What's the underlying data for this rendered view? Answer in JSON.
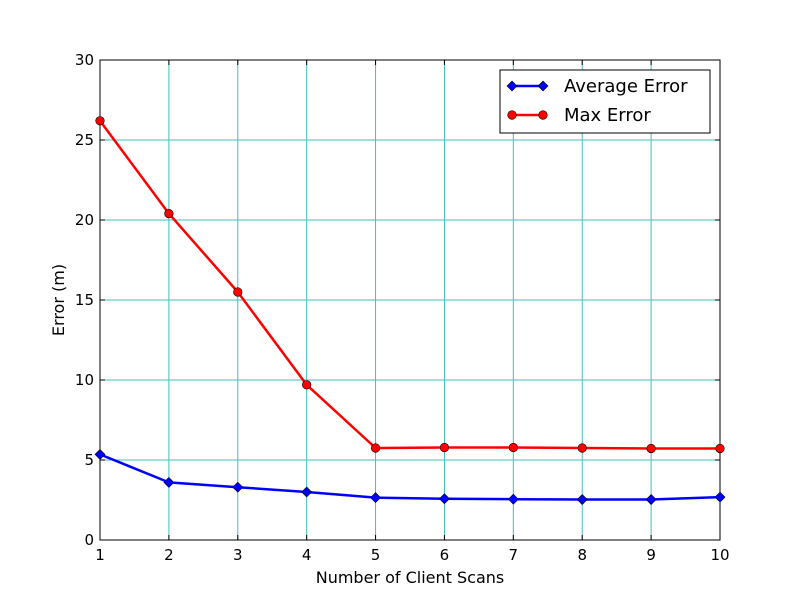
{
  "chart_data": {
    "type": "line",
    "title": "",
    "xlabel": "Number of Client Scans",
    "ylabel": "Error (m)",
    "xlim": [
      1,
      10
    ],
    "ylim": [
      0,
      30
    ],
    "x_ticks": [
      1,
      2,
      3,
      4,
      5,
      6,
      7,
      8,
      9,
      10
    ],
    "y_ticks": [
      0,
      5,
      10,
      15,
      20,
      25,
      30
    ],
    "grid": true,
    "legend_position": "top-right",
    "x": [
      1,
      2,
      3,
      4,
      5,
      6,
      7,
      8,
      9,
      10
    ],
    "series": [
      {
        "name": "Average Error",
        "color": "#0000ff",
        "marker": "diamond",
        "values": [
          5.35,
          3.6,
          3.3,
          3.0,
          2.65,
          2.58,
          2.55,
          2.53,
          2.53,
          2.68
        ]
      },
      {
        "name": "Max Error",
        "color": "#ff0000",
        "marker": "circle",
        "values": [
          26.2,
          20.4,
          15.5,
          9.7,
          5.75,
          5.78,
          5.78,
          5.75,
          5.72,
          5.72
        ]
      }
    ],
    "grid_color": "#3fbfbf"
  }
}
